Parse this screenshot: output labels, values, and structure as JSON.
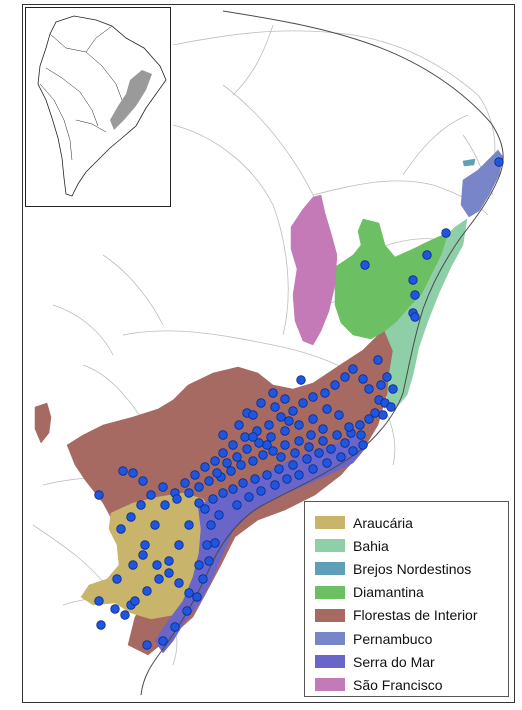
{
  "map": {
    "regions": [
      {
        "id": "araucaria",
        "label": "Araucária",
        "color": "#c8b46a"
      },
      {
        "id": "bahia",
        "label": "Bahia",
        "color": "#8fcfa8"
      },
      {
        "id": "brejos",
        "label": "Brejos Nordestinos",
        "color": "#5fa0b8"
      },
      {
        "id": "diamantina",
        "label": "Diamantina",
        "color": "#6cbf62"
      },
      {
        "id": "florestas",
        "label": "Florestas de Interior",
        "color": "#a66a62"
      },
      {
        "id": "pernambuco",
        "label": "Pernambuco",
        "color": "#7885c8"
      },
      {
        "id": "serra",
        "label": "Serra do Mar",
        "color": "#6a65c8"
      },
      {
        "id": "saofrancisco",
        "label": "São Francisco",
        "color": "#c57ab8"
      }
    ],
    "point_color": "#1e56e0",
    "point_stroke": "#0b2a8a"
  }
}
